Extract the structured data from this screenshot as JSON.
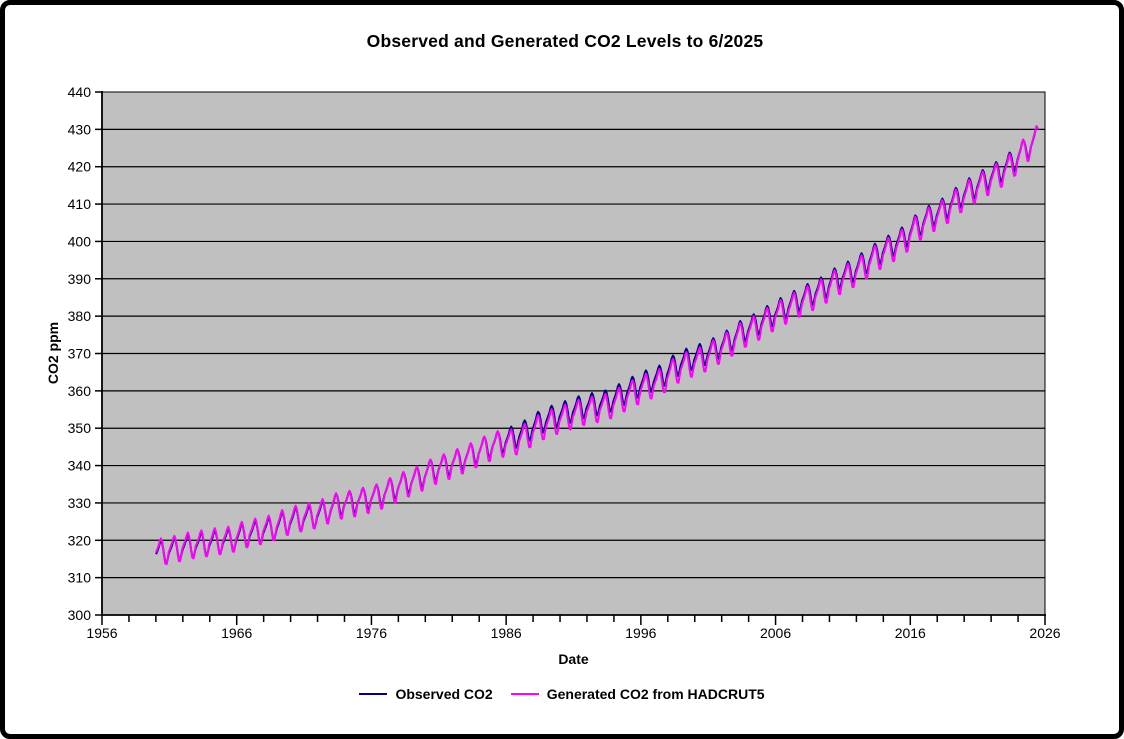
{
  "frame": {
    "background": "#FFFFFF",
    "border_color": "#000000"
  },
  "chart_data": {
    "type": "line",
    "title": "Observed and Generated CO2 Levels to 6/2025",
    "xlabel": "Date",
    "ylabel": "CO2 ppm",
    "xlim": [
      1956,
      2026
    ],
    "ylim": [
      300,
      440
    ],
    "x_major_ticks": [
      1956,
      1966,
      1976,
      1986,
      1996,
      2006,
      2016,
      2026
    ],
    "x_minor_tick_step_years": 2,
    "y_ticks": [
      300,
      310,
      320,
      330,
      340,
      350,
      360,
      370,
      380,
      390,
      400,
      410,
      420,
      430,
      440
    ],
    "grid": "horizontal-only",
    "plot_background": "#C0C0C0",
    "grid_color": "#000000",
    "axis_color": "#000000",
    "legend_position": "bottom-center",
    "series": [
      {
        "name": "Observed CO2",
        "color": "#000080",
        "cadence": "monthly",
        "start": "1960-01",
        "end": "2025-06",
        "years": [
          1960,
          1961,
          1962,
          1963,
          1964,
          1965,
          1966,
          1967,
          1968,
          1969,
          1970,
          1971,
          1972,
          1973,
          1974,
          1975,
          1976,
          1977,
          1978,
          1979,
          1980,
          1981,
          1982,
          1983,
          1984,
          1985,
          1986,
          1987,
          1988,
          1989,
          1990,
          1991,
          1992,
          1993,
          1994,
          1995,
          1996,
          1997,
          1998,
          1999,
          2000,
          2001,
          2002,
          2003,
          2004,
          2005,
          2006,
          2007,
          2008,
          2009,
          2010,
          2011,
          2012,
          2013,
          2014,
          2015,
          2016,
          2017,
          2018,
          2019,
          2020,
          2021,
          2022,
          2023,
          2024,
          2025
        ],
        "annual_means": [
          316.9,
          317.6,
          318.5,
          319.0,
          319.6,
          320.0,
          321.4,
          322.2,
          323.0,
          324.6,
          325.7,
          326.3,
          327.5,
          329.7,
          330.2,
          331.1,
          332.0,
          333.8,
          335.4,
          336.8,
          338.8,
          340.1,
          341.5,
          343.1,
          344.9,
          346.3,
          347.6,
          349.3,
          351.7,
          353.2,
          354.4,
          355.7,
          356.5,
          357.2,
          359.0,
          361.0,
          362.7,
          363.9,
          366.8,
          368.5,
          369.7,
          371.3,
          373.4,
          376.0,
          377.7,
          380.0,
          382.1,
          384.0,
          385.8,
          387.6,
          390.1,
          391.8,
          394.1,
          396.7,
          398.8,
          401.0,
          404.4,
          406.8,
          408.7,
          411.7,
          414.2,
          416.4,
          418.5,
          421.1,
          424.6,
          428.0
        ],
        "seasonal_cycle_monthly_anomaly": [
          -0.1,
          0.6,
          1.4,
          2.5,
          3.0,
          2.3,
          0.8,
          -1.3,
          -3.1,
          -3.3,
          -2.1,
          -0.8
        ]
      },
      {
        "name": "Generated CO2 from HADCRUT5",
        "color": "#FF00FF",
        "cadence": "monthly",
        "start": "1960-01",
        "end": "2025-06",
        "years": [
          1960,
          1961,
          1962,
          1963,
          1964,
          1965,
          1966,
          1967,
          1968,
          1969,
          1970,
          1971,
          1972,
          1973,
          1974,
          1975,
          1976,
          1977,
          1978,
          1979,
          1980,
          1981,
          1982,
          1983,
          1984,
          1985,
          1986,
          1987,
          1988,
          1989,
          1990,
          1991,
          1992,
          1993,
          1994,
          1995,
          1996,
          1997,
          1998,
          1999,
          2000,
          2001,
          2002,
          2003,
          2004,
          2005,
          2006,
          2007,
          2008,
          2009,
          2010,
          2011,
          2012,
          2013,
          2014,
          2015,
          2016,
          2017,
          2018,
          2019,
          2020,
          2021,
          2022,
          2023,
          2024,
          2025
        ],
        "annual_means": [
          317.2,
          317.9,
          318.8,
          319.3,
          319.9,
          320.3,
          321.7,
          322.5,
          323.3,
          324.9,
          326.0,
          326.6,
          327.8,
          329.4,
          329.9,
          330.8,
          331.7,
          333.5,
          335.1,
          336.5,
          338.5,
          339.8,
          341.2,
          342.8,
          344.6,
          346.0,
          346.3,
          348.0,
          350.4,
          351.9,
          353.1,
          354.4,
          355.2,
          355.9,
          357.7,
          359.7,
          361.4,
          362.6,
          365.5,
          367.2,
          368.4,
          370.4,
          372.5,
          375.1,
          376.8,
          379.1,
          381.2,
          383.1,
          384.9,
          386.7,
          389.2,
          390.9,
          393.2,
          395.8,
          397.9,
          400.1,
          403.6,
          406.0,
          407.9,
          410.9,
          413.4,
          415.6,
          417.7,
          420.3,
          424.4,
          427.9
        ],
        "seasonal_cycle_monthly_anomaly": [
          0.1,
          0.9,
          1.7,
          2.8,
          3.4,
          2.5,
          0.5,
          -1.8,
          -3.6,
          -3.8,
          -2.2,
          -0.6
        ]
      }
    ]
  },
  "legend": {
    "items": [
      {
        "label": "Observed CO2",
        "color": "#000080"
      },
      {
        "label": "Generated CO2 from HADCRUT5",
        "color": "#FF00FF"
      }
    ]
  }
}
